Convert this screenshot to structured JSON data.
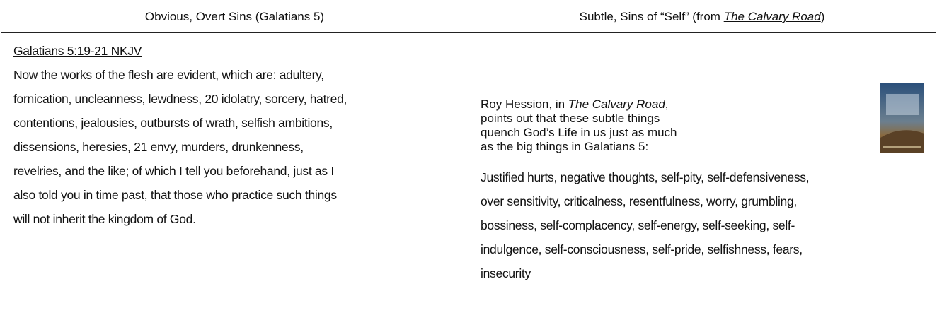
{
  "header": {
    "left": "Obvious, Overt Sins (Galatians 5)",
    "right": {
      "before": "Subtle, Sins of “Self” (from ",
      "title": "The Calvary Road",
      "after": ")"
    }
  },
  "left": {
    "reference": "Galatians 5:19-21   NKJV",
    "lines": [
      "Now the works of the flesh are evident, which are: adultery,",
      "fornication, uncleanness, lewdness, 20 idolatry, sorcery, hatred,",
      "contentions, jealousies, outbursts of wrath, selfish ambitions,",
      "dissensions, heresies, 21 envy, murders, drunkenness,",
      "revelries, and the like; of which I tell you beforehand, just as I",
      "also told you in time past, that those who practice such things",
      "will not inherit the kingdom of God."
    ]
  },
  "right": {
    "intro": {
      "before": "Roy Hession, in ",
      "title": "The Calvary Road",
      "after": ", points out that these subtle things quench God’s Life in us just as much as the big things in Galatians 5:"
    },
    "lines": [
      "Justified hurts, negative thoughts, self-pity, self-defensiveness,",
      "over sensitivity, criticalness, resentfulness, worry, grumbling,",
      "bossiness, self-complacency, self-energy, self-seeking, self-",
      "indulgence, self-consciousness, self-pride, selfishness, fears,",
      "insecurity"
    ]
  }
}
